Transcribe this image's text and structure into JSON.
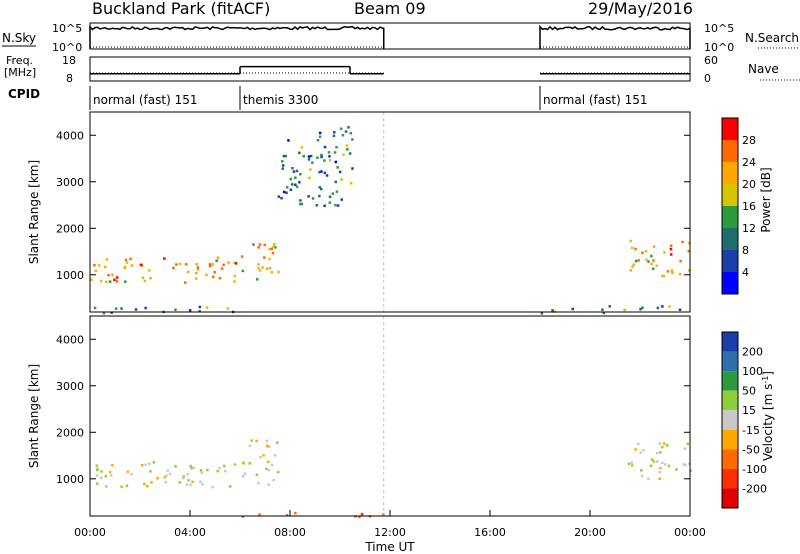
{
  "header": {
    "station": "Buckland Park (fitACF)",
    "beam": "Beam 09",
    "date": "29/May/2016"
  },
  "status_panels": {
    "nsky_label": "N.Sky",
    "nsearch_label": "N.Search",
    "power_ticks": [
      "10^5",
      "10^0"
    ],
    "freq_label": "Freq.",
    "freq_unit": "[MHz]",
    "freq_ticks": [
      "18",
      "8"
    ],
    "nave_label": "Nave",
    "nave_ticks": [
      "60",
      "0"
    ],
    "cpid_label": "CPID",
    "cpid_segments": [
      {
        "name": "normal (fast) 151",
        "start_hour": 0,
        "end_hour": 6
      },
      {
        "name": "themis 3300",
        "start_hour": 6,
        "end_hour": 11.75
      },
      {
        "name": "normal (fast) 151",
        "start_hour": 18,
        "end_hour": 24
      }
    ],
    "nsky": [
      {
        "start_hour": 0,
        "end_hour": 11.75,
        "level": 0.8
      },
      {
        "start_hour": 18,
        "end_hour": 24,
        "level": 0.8
      }
    ],
    "frequency": [
      {
        "start_hour": 0,
        "end_hour": 6,
        "mhz": 11
      },
      {
        "start_hour": 6,
        "end_hour": 10.4,
        "mhz": 14
      },
      {
        "start_hour": 10.4,
        "end_hour": 11.75,
        "mhz": 11
      },
      {
        "start_hour": 18,
        "end_hour": 24,
        "mhz": 11
      }
    ]
  },
  "chart_data": [
    {
      "type": "heatmap",
      "name": "power",
      "ylabel": "Slant Range [km]",
      "y_ticks": [
        1000,
        2000,
        3000,
        4000
      ],
      "ylim": [
        200,
        4500
      ],
      "xlim": [
        0,
        24
      ],
      "colorbar": {
        "label": "Power [dB]",
        "ticks": [
          "28",
          "24",
          "20",
          "16",
          "12",
          "8",
          "4"
        ],
        "colors": [
          "#ff0000",
          "#ff6a00",
          "#ffa800",
          "#d9c400",
          "#2e9a3e",
          "#1f6e6e",
          "#1a3fa8",
          "#0000ff"
        ]
      },
      "data_gaps": [
        [
          11.75,
          18
        ]
      ],
      "echo_regions": [
        {
          "t": [
            0,
            6
          ],
          "r": [
            200,
            350
          ],
          "level": 10
        },
        {
          "t": [
            18,
            24
          ],
          "r": [
            200,
            350
          ],
          "level": 10
        },
        {
          "t": [
            0,
            6
          ],
          "r": [
            850,
            1400
          ],
          "level": 20
        },
        {
          "t": [
            6,
            7.5
          ],
          "r": [
            900,
            1800
          ],
          "level": 18
        },
        {
          "t": [
            7.5,
            10.5
          ],
          "r": [
            2500,
            4200
          ],
          "level": 8
        },
        {
          "t": [
            21.5,
            24
          ],
          "r": [
            1000,
            1800
          ],
          "level": 20
        }
      ]
    },
    {
      "type": "heatmap",
      "name": "velocity",
      "ylabel": "Slant Range [km]",
      "y_ticks": [
        1000,
        2000,
        3000,
        4000
      ],
      "ylim": [
        200,
        4500
      ],
      "xlim": [
        0,
        24
      ],
      "xlabel": "Time UT",
      "x_ticks": [
        "00:00",
        "04:00",
        "08:00",
        "12:00",
        "16:00",
        "20:00",
        "00:00"
      ],
      "colorbar": {
        "label": "Velocity [m s",
        "label_sup": "-1",
        "label_end": "]",
        "ticks": [
          "200",
          "100",
          "50",
          "15",
          "-15",
          "-50",
          "-100",
          "-200"
        ],
        "colors": [
          "#1a3fa8",
          "#2e6fb0",
          "#2e9a3e",
          "#8ccf3a",
          "#c8c8c8",
          "#ffa800",
          "#ff6a00",
          "#ff3000",
          "#e00000"
        ]
      },
      "data_gaps": [
        [
          11.75,
          18
        ]
      ],
      "echo_regions": [
        {
          "t": [
            0,
            6
          ],
          "r": [
            850,
            1400
          ],
          "velocity": 0
        },
        {
          "t": [
            6,
            7.5
          ],
          "r": [
            900,
            1900
          ],
          "velocity": 0
        },
        {
          "t": [
            21.5,
            24
          ],
          "r": [
            1000,
            1800
          ],
          "velocity": 0
        },
        {
          "t": [
            6,
            11.75
          ],
          "r": [
            200,
            300
          ],
          "velocity": -100
        }
      ]
    }
  ]
}
